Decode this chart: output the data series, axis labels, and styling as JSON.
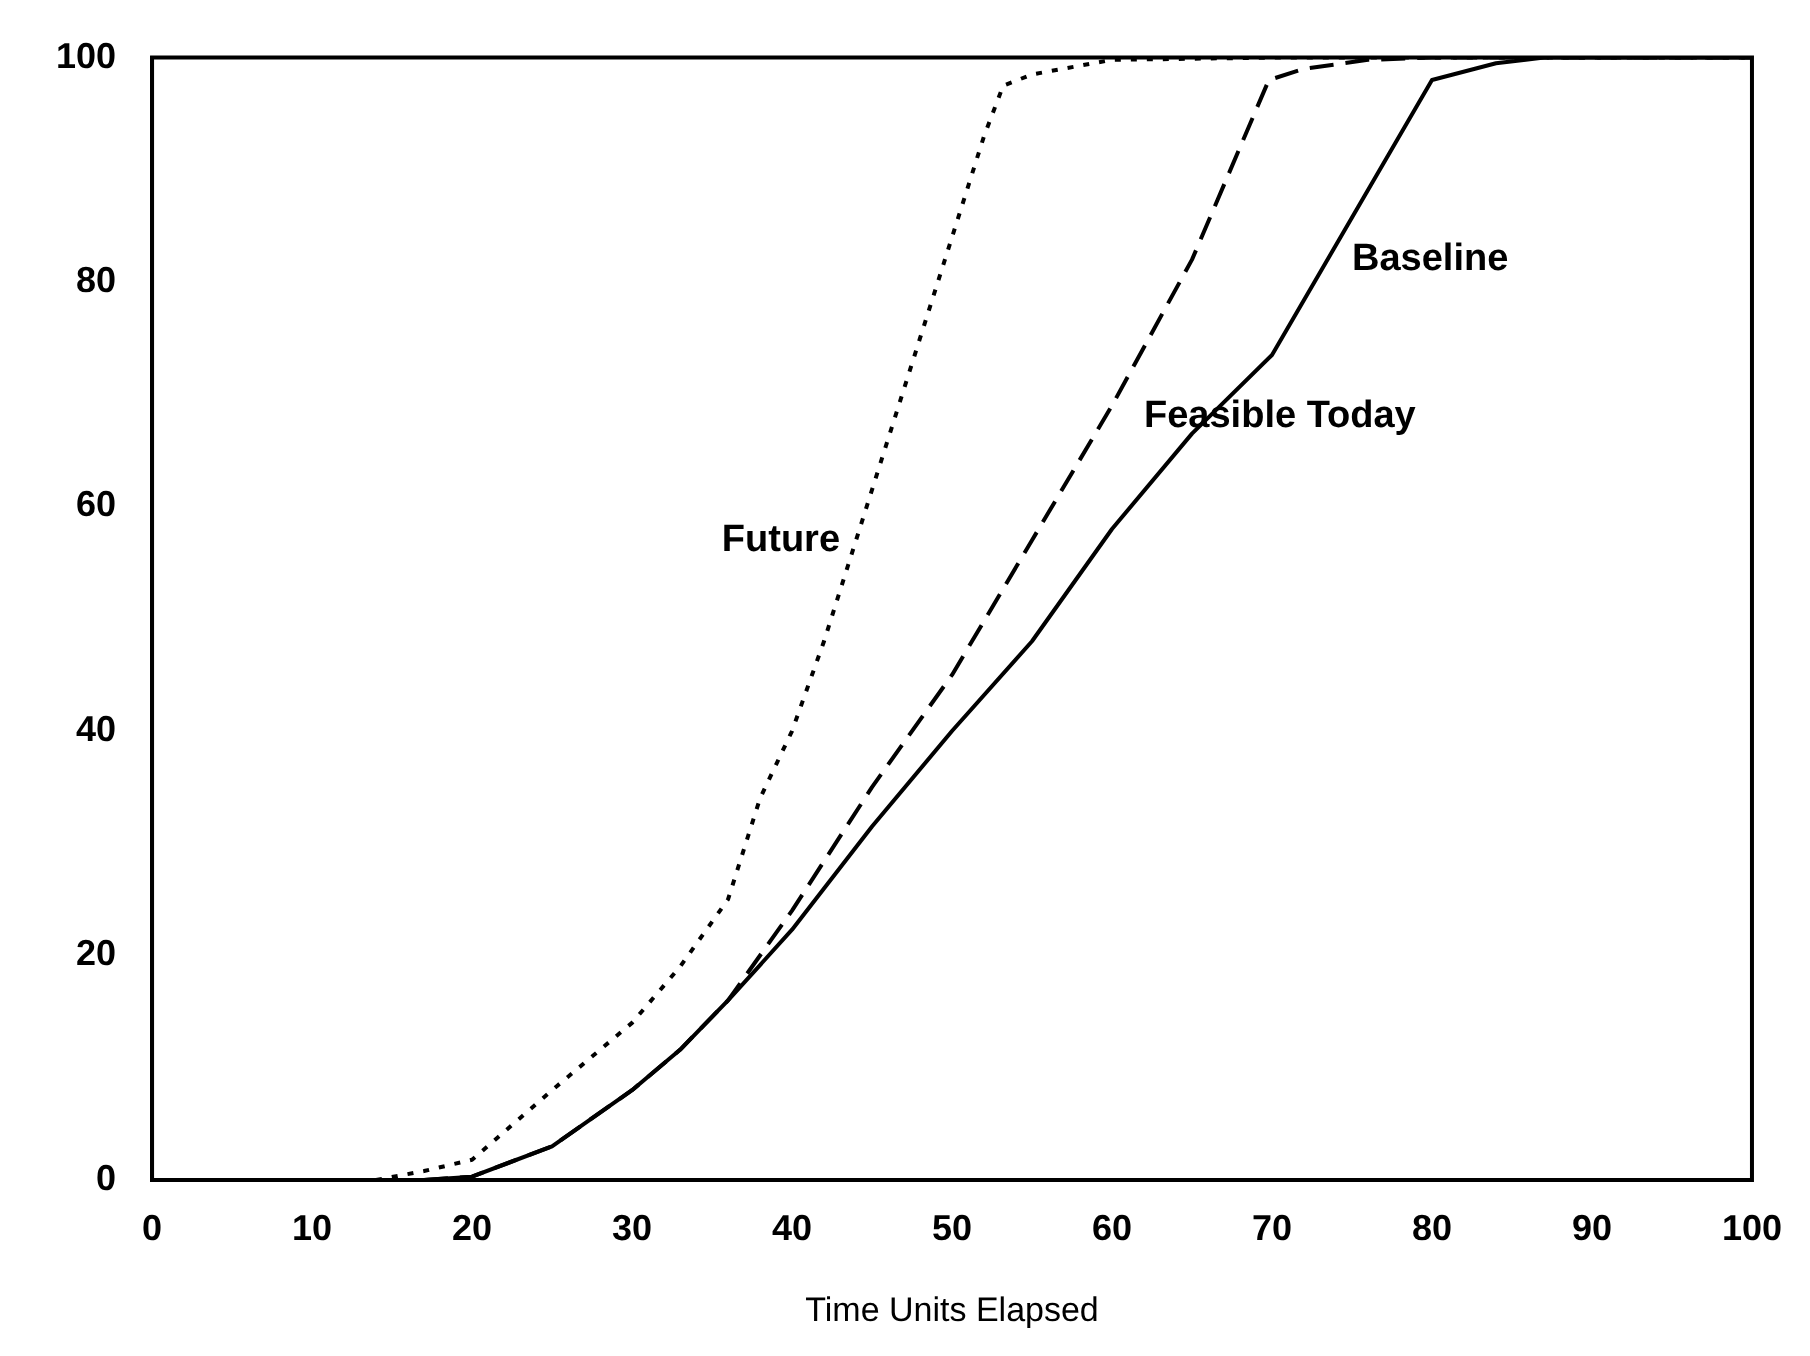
{
  "chart_data": {
    "type": "line",
    "xlabel": "Time Units Elapsed",
    "xlim": [
      0,
      100
    ],
    "ylim": [
      0,
      100
    ],
    "xticks": [
      0,
      10,
      20,
      30,
      40,
      50,
      60,
      70,
      80,
      90,
      100
    ],
    "yticks": [
      0,
      20,
      40,
      60,
      80,
      100
    ],
    "grid": false,
    "legend": false,
    "marker": "none",
    "series": [
      {
        "name": "Future",
        "color": "#000000",
        "line_style": "dotted",
        "x": [
          14,
          17,
          20,
          25,
          30,
          33,
          36,
          38,
          40,
          42,
          44,
          46,
          48,
          50,
          52,
          53.2,
          55,
          60,
          70,
          100
        ],
        "values": [
          0,
          0.8,
          1.8,
          8,
          14,
          19,
          25,
          34,
          40,
          48,
          57,
          66,
          75,
          84,
          93,
          97.5,
          98.5,
          99.8,
          100,
          100
        ]
      },
      {
        "name": "Feasible Today",
        "color": "#000000",
        "line_style": "dashed",
        "x": [
          17,
          20,
          25,
          30,
          33,
          36,
          38,
          40,
          45,
          50,
          55,
          60,
          65,
          69.8,
          72,
          76,
          80,
          100
        ],
        "values": [
          0,
          0.3,
          3,
          8,
          11.6,
          16,
          20,
          24,
          35,
          45,
          57,
          69,
          82,
          98,
          99,
          99.8,
          100,
          100
        ]
      },
      {
        "name": "Baseline",
        "color": "#000000",
        "line_style": "solid",
        "x": [
          17,
          20,
          25,
          30,
          33,
          36,
          40,
          45,
          50,
          55,
          60,
          65,
          70,
          80,
          84,
          87,
          100
        ],
        "values": [
          0,
          0.3,
          3,
          8,
          11.6,
          16,
          22.3,
          31.5,
          40,
          48,
          58,
          66.5,
          73.5,
          98,
          99.5,
          100,
          100
        ]
      }
    ]
  }
}
